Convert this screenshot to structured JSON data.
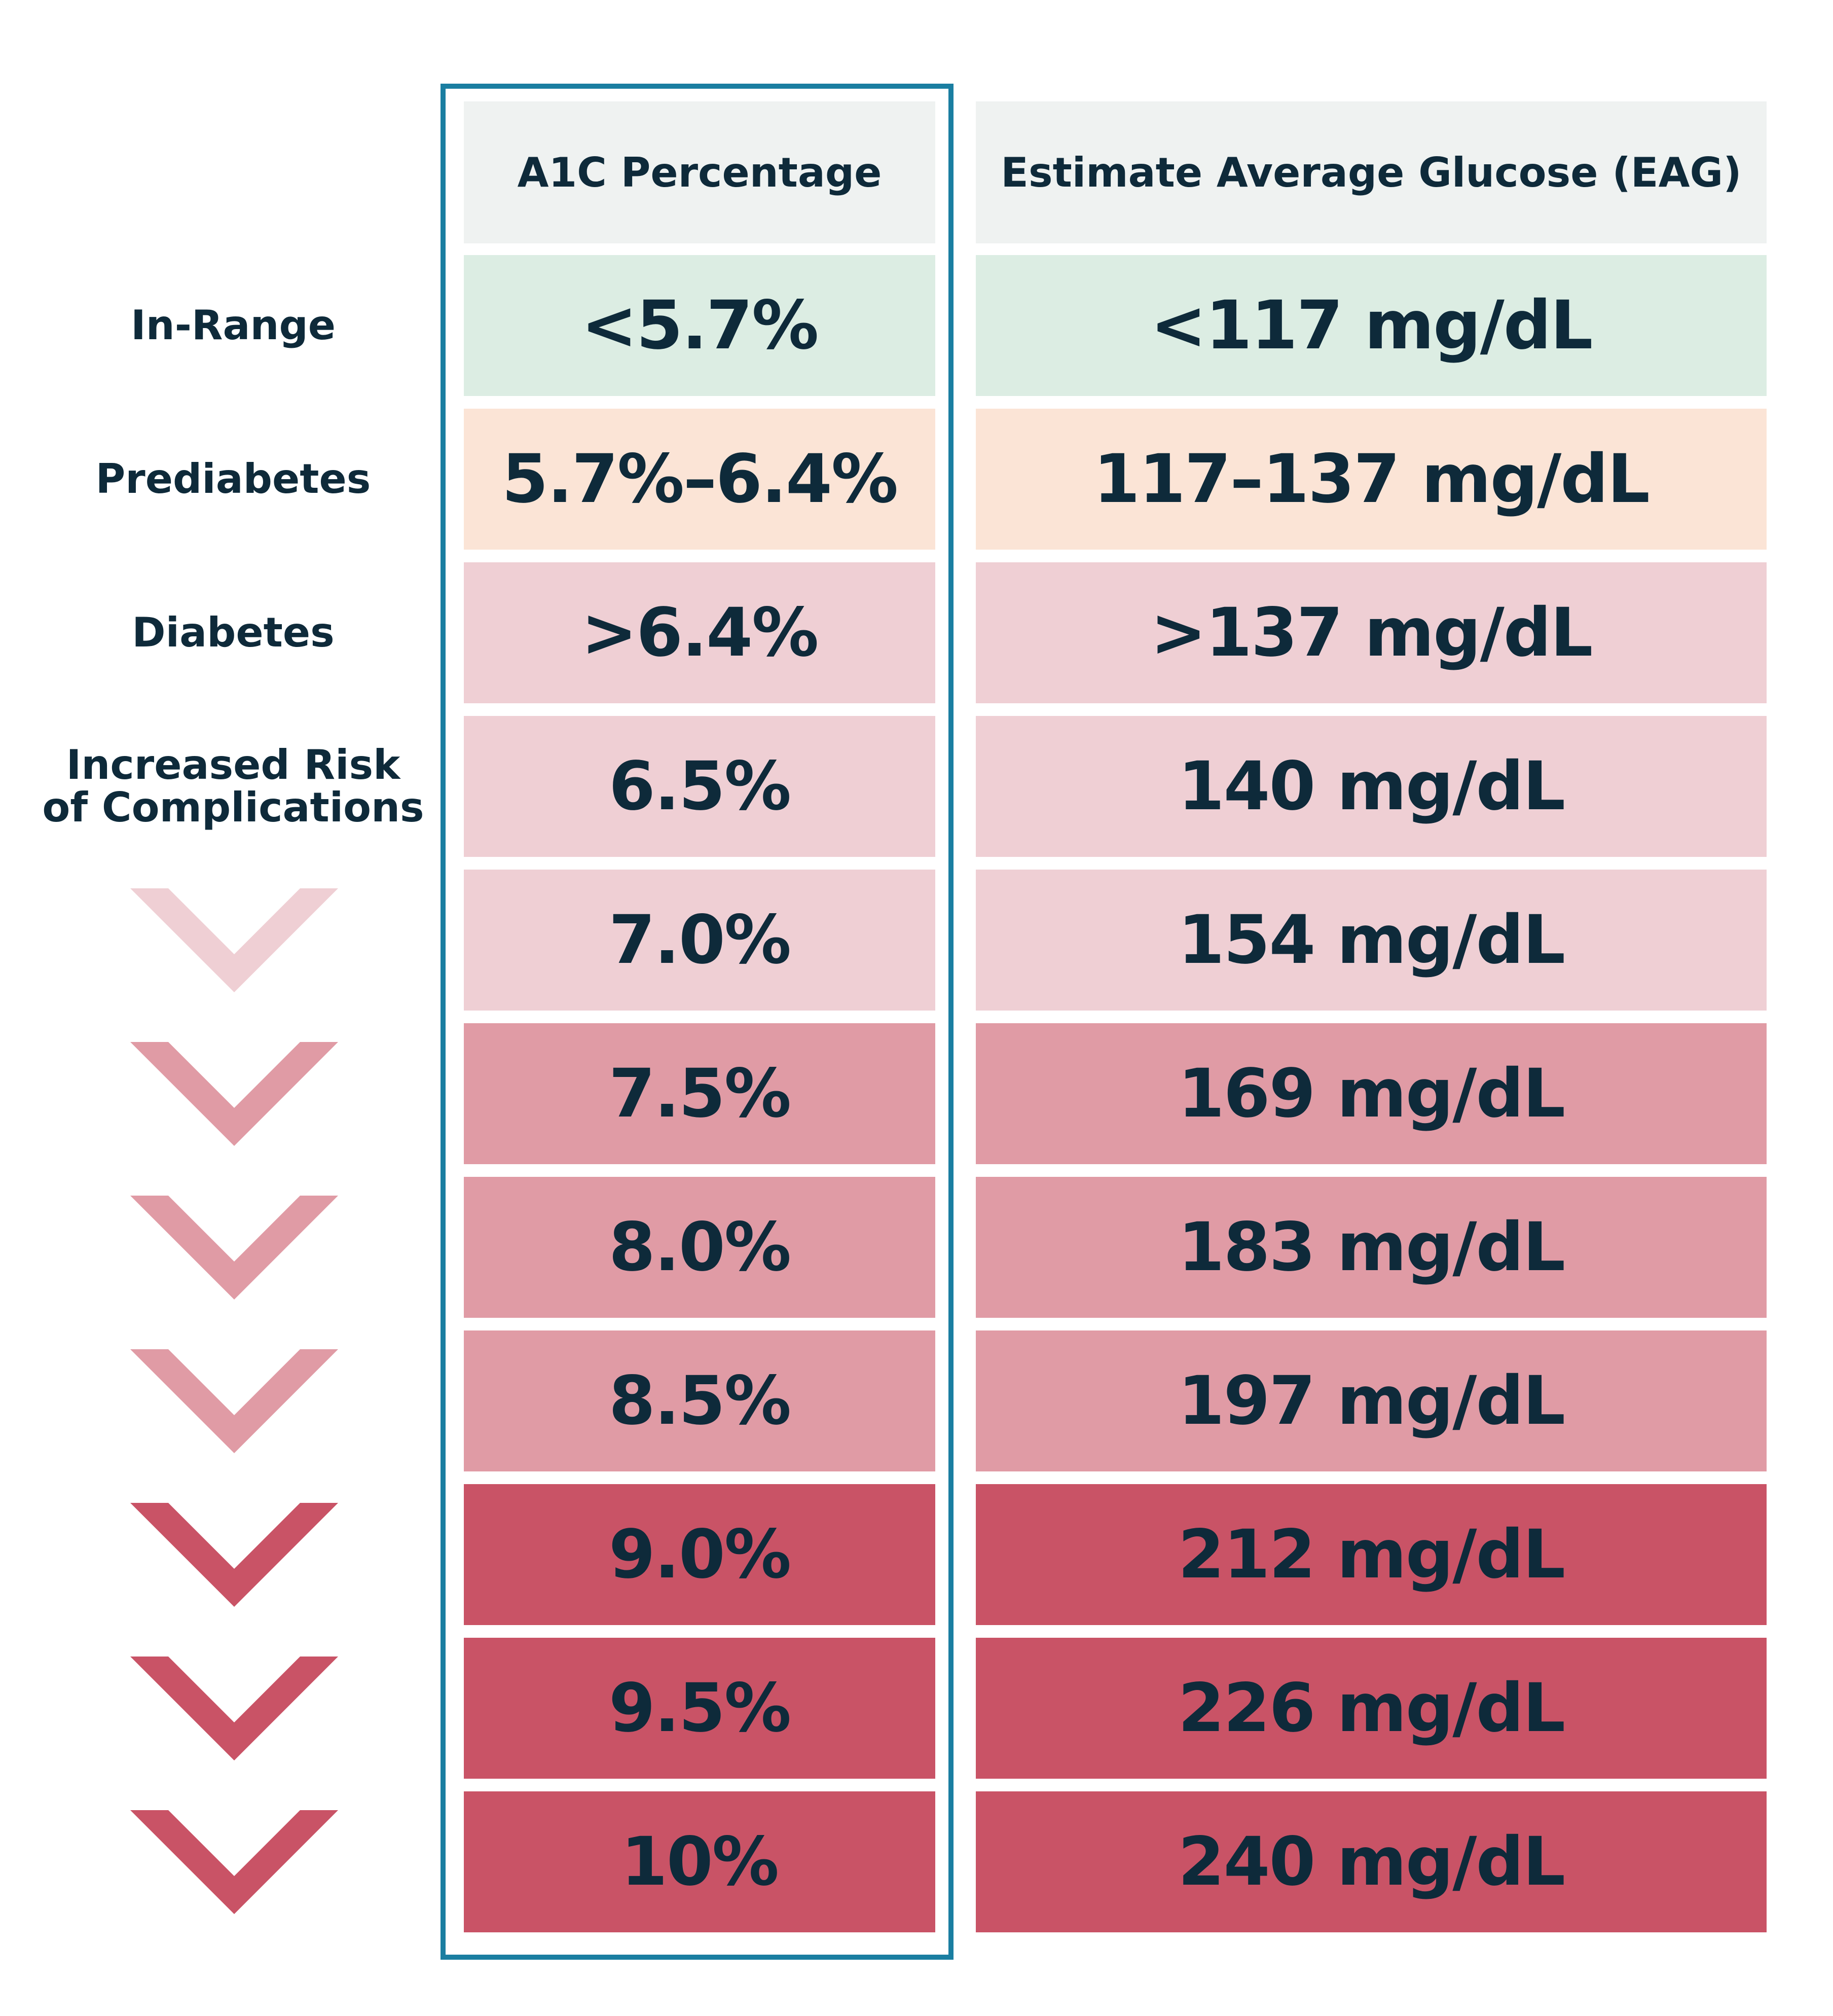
{
  "colors": {
    "header_bg": "#eff2f1",
    "frame": "#1a7ea1",
    "text": "#0e2a3a",
    "in_range": "#dcede3",
    "prediabetes": "#fbe4d6",
    "diabetes_light": "#efcfd4",
    "diabetes_mid": "#e09ba5",
    "diabetes_dark": "#c95366"
  },
  "headers": {
    "a1c": "A1C Percentage",
    "eag": "Estimate Average Glucose (EAG)"
  },
  "labels": {
    "in_range": "In-Range",
    "prediabetes": "Prediabetes",
    "diabetes": "Diabetes",
    "increased_risk": "Increased Risk of Complications"
  },
  "rows": [
    {
      "a1c": "<5.7%",
      "eag": "<117 mg/dL",
      "tone": "in_range"
    },
    {
      "a1c": "5.7%–6.4%",
      "eag": "117–137 mg/dL",
      "tone": "prediabetes"
    },
    {
      "a1c": ">6.4%",
      "eag": ">137 mg/dL",
      "tone": "diabetes_light"
    },
    {
      "a1c": "6.5%",
      "eag": "140 mg/dL",
      "tone": "diabetes_light"
    },
    {
      "a1c": "7.0%",
      "eag": "154 mg/dL",
      "tone": "diabetes_light"
    },
    {
      "a1c": "7.5%",
      "eag": "169 mg/dL",
      "tone": "diabetes_mid"
    },
    {
      "a1c": "8.0%",
      "eag": "183 mg/dL",
      "tone": "diabetes_mid"
    },
    {
      "a1c": "8.5%",
      "eag": "197 mg/dL",
      "tone": "diabetes_mid"
    },
    {
      "a1c": "9.0%",
      "eag": "212 mg/dL",
      "tone": "diabetes_dark"
    },
    {
      "a1c": "9.5%",
      "eag": "226 mg/dL",
      "tone": "diabetes_dark"
    },
    {
      "a1c": "10%",
      "eag": "240 mg/dL",
      "tone": "diabetes_dark"
    }
  ],
  "chevrons": [
    {
      "icon": "chevron-down-icon",
      "tone": "diabetes_light"
    },
    {
      "icon": "chevron-down-icon",
      "tone": "diabetes_mid"
    },
    {
      "icon": "chevron-down-icon",
      "tone": "diabetes_mid"
    },
    {
      "icon": "chevron-down-icon",
      "tone": "diabetes_mid"
    },
    {
      "icon": "chevron-down-icon",
      "tone": "diabetes_dark"
    },
    {
      "icon": "chevron-down-icon",
      "tone": "diabetes_dark"
    },
    {
      "icon": "chevron-down-icon",
      "tone": "diabetes_dark"
    }
  ]
}
